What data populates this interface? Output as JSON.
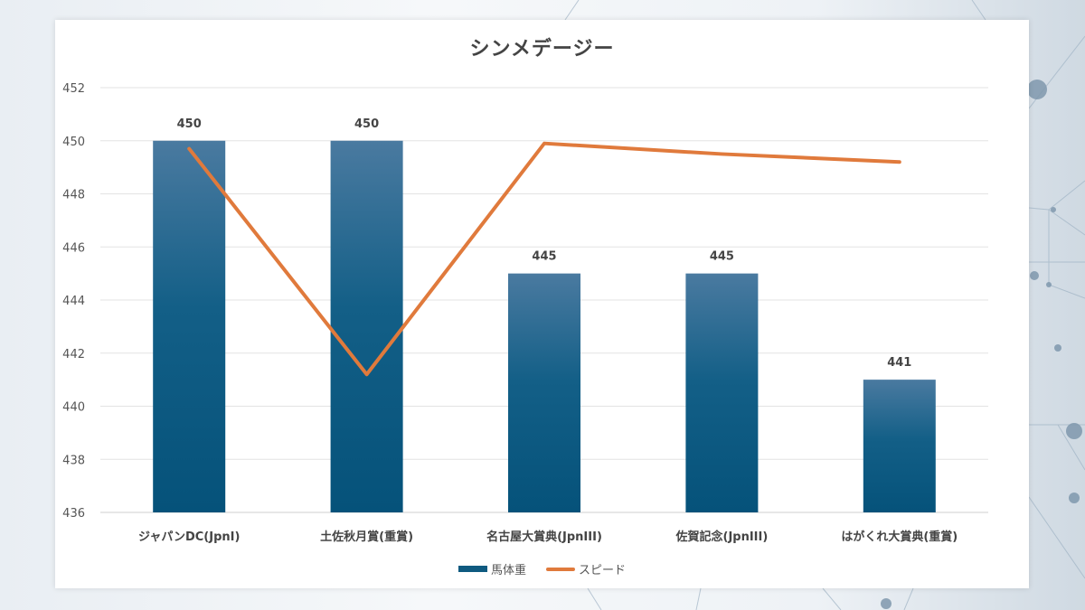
{
  "chart_data": {
    "type": "bar",
    "title": "シンメデージー",
    "categories": [
      "ジャパンDC(JpnI)",
      "土佐秋月賞(重賞)",
      "名古屋大賞典(JpnIII)",
      "佐賀記念(JpnIII)",
      "はがくれ大賞典(重賞)"
    ],
    "series": [
      {
        "name": "馬体重",
        "kind": "bar",
        "values": [
          450,
          450,
          445,
          445,
          441
        ],
        "data_labels": [
          "450",
          "450",
          "445",
          "445",
          "441"
        ],
        "color": "#0f5a80"
      },
      {
        "name": "スピード",
        "kind": "line",
        "values": [
          449.7,
          441.2,
          449.9,
          449.5,
          449.2
        ],
        "color": "#e07a3c"
      }
    ],
    "ylim": [
      436,
      452
    ],
    "yticks": [
      "452",
      "450",
      "448",
      "446",
      "444",
      "442",
      "440",
      "438",
      "436"
    ],
    "grid": true,
    "legend": "bottom"
  }
}
